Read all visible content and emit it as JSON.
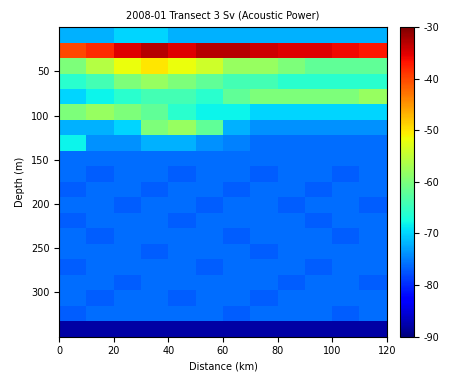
{
  "chart_data": {
    "type": "heatmap",
    "title": "2008-01 Transect 3 Sv (Acoustic Power)",
    "x_label": "Distance (km)",
    "y_label": "Depth (m)",
    "x_edges": [
      0,
      10,
      20,
      30,
      40,
      50,
      60,
      70,
      80,
      90,
      100,
      110,
      120
    ],
    "y_edges": [
      0,
      17.5,
      35,
      52.5,
      70,
      87.5,
      105,
      122.5,
      140,
      157.5,
      175,
      192.5,
      210,
      227.5,
      245,
      262.5,
      280,
      297.5,
      315,
      332.5,
      350
    ],
    "xlim": [
      0,
      120
    ],
    "xticks": [
      0,
      20,
      40,
      60,
      80,
      100,
      120
    ],
    "ylim": [
      350,
      0
    ],
    "yticks": [
      50,
      100,
      150,
      200,
      250,
      300
    ],
    "cells": [
      [
        -72,
        -72,
        -70,
        -70,
        -72,
        -72,
        -72,
        -72,
        -72,
        -72,
        -72,
        -72
      ],
      [
        -40,
        -38,
        -35,
        -33,
        -35,
        -33,
        -33,
        -34,
        -35,
        -35,
        -36,
        -37
      ],
      [
        -60,
        -56,
        -52,
        -50,
        -52,
        -54,
        -58,
        -58,
        -60,
        -62,
        -62,
        -62
      ],
      [
        -66,
        -64,
        -60,
        -58,
        -60,
        -62,
        -64,
        -64,
        -66,
        -66,
        -66,
        -66
      ],
      [
        -70,
        -68,
        -66,
        -64,
        -64,
        -66,
        -62,
        -60,
        -60,
        -60,
        -60,
        -58
      ],
      [
        -60,
        -58,
        -60,
        -62,
        -66,
        -68,
        -68,
        -70,
        -70,
        -70,
        -70,
        -70
      ],
      [
        -72,
        -72,
        -70,
        -60,
        -58,
        -62,
        -72,
        -74,
        -74,
        -74,
        -74,
        -74
      ],
      [
        -68,
        -74,
        -74,
        -72,
        -72,
        -74,
        -75,
        -76,
        -76,
        -76,
        -76,
        -76
      ],
      [
        -76,
        -76,
        -76,
        -76,
        -76,
        -76,
        -76,
        -76,
        -76,
        -76,
        -76,
        -76
      ],
      [
        -76,
        -77,
        -76,
        -76,
        -77,
        -76,
        -76,
        -77,
        -76,
        -76,
        -77,
        -76
      ],
      [
        -77,
        -76,
        -76,
        -77,
        -76,
        -76,
        -77,
        -76,
        -76,
        -77,
        -76,
        -76
      ],
      [
        -76,
        -76,
        -77,
        -76,
        -76,
        -77,
        -76,
        -76,
        -77,
        -76,
        -76,
        -77
      ],
      [
        -77,
        -76,
        -76,
        -76,
        -77,
        -76,
        -76,
        -76,
        -76,
        -77,
        -76,
        -76
      ],
      [
        -76,
        -77,
        -76,
        -76,
        -76,
        -76,
        -77,
        -76,
        -76,
        -76,
        -77,
        -76
      ],
      [
        -76,
        -76,
        -76,
        -77,
        -76,
        -76,
        -76,
        -77,
        -76,
        -76,
        -76,
        -76
      ],
      [
        -77,
        -76,
        -76,
        -76,
        -76,
        -77,
        -76,
        -76,
        -76,
        -77,
        -76,
        -76
      ],
      [
        -76,
        -76,
        -77,
        -76,
        -76,
        -76,
        -76,
        -76,
        -77,
        -76,
        -76,
        -77
      ],
      [
        -76,
        -77,
        -76,
        -76,
        -77,
        -76,
        -76,
        -77,
        -76,
        -76,
        -76,
        -76
      ],
      [
        -77,
        -76,
        -76,
        -76,
        -76,
        -76,
        -77,
        -76,
        -76,
        -76,
        -77,
        -76
      ],
      [
        -88,
        -88,
        -88,
        -88,
        -88,
        -88,
        -88,
        -88,
        -88,
        -88,
        -88,
        -88
      ]
    ],
    "colorbar_range": [
      -90,
      -30
    ],
    "colorbar_ticks": [
      -90,
      -80,
      -70,
      -60,
      -50,
      -40,
      -30
    ]
  }
}
